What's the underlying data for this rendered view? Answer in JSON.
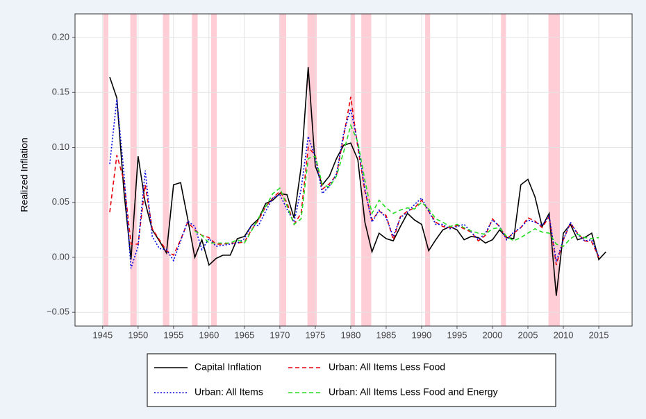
{
  "chart_data": {
    "type": "line",
    "y_label": "Realized Inflation",
    "x": [
      1946,
      1947,
      1948,
      1949,
      1950,
      1951,
      1952,
      1953,
      1954,
      1955,
      1956,
      1957,
      1958,
      1959,
      1960,
      1961,
      1962,
      1963,
      1964,
      1965,
      1966,
      1967,
      1968,
      1969,
      1970,
      1971,
      1972,
      1973,
      1974,
      1975,
      1976,
      1977,
      1978,
      1979,
      1980,
      1981,
      1982,
      1983,
      1984,
      1985,
      1986,
      1987,
      1988,
      1989,
      1990,
      1991,
      1992,
      1993,
      1994,
      1995,
      1996,
      1997,
      1998,
      1999,
      2000,
      2001,
      2002,
      2003,
      2004,
      2005,
      2006,
      2007,
      2008,
      2009,
      2010,
      2011,
      2012,
      2013,
      2014,
      2015,
      2016
    ],
    "series": [
      {
        "name": "Capital Inflation",
        "color": "#000000",
        "dash": "solid",
        "values": [
          0.164,
          0.145,
          0.06,
          -0.002,
          0.092,
          0.05,
          0.025,
          0.015,
          0.004,
          0.066,
          0.068,
          0.035,
          0.0,
          0.016,
          -0.007,
          -0.001,
          0.002,
          0.002,
          0.017,
          0.019,
          0.029,
          0.035,
          0.049,
          0.052,
          0.058,
          0.057,
          0.036,
          0.082,
          0.173,
          0.083,
          0.066,
          0.074,
          0.09,
          0.102,
          0.104,
          0.089,
          0.032,
          0.005,
          0.022,
          0.017,
          0.015,
          0.028,
          0.04,
          0.034,
          0.03,
          0.006,
          0.016,
          0.025,
          0.028,
          0.025,
          0.016,
          0.019,
          0.018,
          0.013,
          0.016,
          0.025,
          0.018,
          0.017,
          0.066,
          0.071,
          0.055,
          0.028,
          0.04,
          -0.035,
          0.022,
          0.03,
          0.016,
          0.018,
          0.022,
          -0.002,
          0.005
        ]
      },
      {
        "name": "Urban: All Items Less Food",
        "color": "#e8000b",
        "dash": "dashed",
        "values": [
          0.041,
          0.093,
          0.07,
          0.012,
          0.012,
          0.066,
          0.026,
          0.016,
          0.006,
          0.002,
          0.016,
          0.032,
          0.025,
          0.02,
          0.018,
          0.012,
          0.012,
          0.013,
          0.013,
          0.014,
          0.025,
          0.034,
          0.046,
          0.054,
          0.06,
          0.05,
          0.03,
          0.04,
          0.1,
          0.093,
          0.062,
          0.067,
          0.075,
          0.11,
          0.146,
          0.1,
          0.06,
          0.034,
          0.042,
          0.038,
          0.016,
          0.037,
          0.042,
          0.045,
          0.052,
          0.042,
          0.032,
          0.028,
          0.027,
          0.029,
          0.026,
          0.023,
          0.015,
          0.02,
          0.035,
          0.028,
          0.017,
          0.022,
          0.027,
          0.036,
          0.033,
          0.027,
          0.037,
          -0.007,
          0.016,
          0.031,
          0.022,
          0.015,
          0.014,
          0.0,
          null
        ]
      },
      {
        "name": "Urban: All Items",
        "color": "#0000e0",
        "dash": "dotted",
        "values": [
          0.085,
          0.144,
          0.077,
          -0.01,
          0.01,
          0.079,
          0.019,
          0.008,
          0.007,
          -0.003,
          0.015,
          0.033,
          0.028,
          0.007,
          0.017,
          0.01,
          0.011,
          0.012,
          0.013,
          0.017,
          0.029,
          0.029,
          0.042,
          0.054,
          0.057,
          0.044,
          0.032,
          0.062,
          0.11,
          0.091,
          0.058,
          0.065,
          0.076,
          0.113,
          0.135,
          0.103,
          0.062,
          0.032,
          0.043,
          0.036,
          0.019,
          0.036,
          0.041,
          0.048,
          0.054,
          0.042,
          0.03,
          0.03,
          0.026,
          0.028,
          0.03,
          0.023,
          0.016,
          0.022,
          0.034,
          0.028,
          0.016,
          0.023,
          0.027,
          0.034,
          0.032,
          0.029,
          0.038,
          -0.004,
          0.016,
          0.032,
          0.021,
          0.015,
          0.016,
          0.001,
          null
        ]
      },
      {
        "name": "Urban: All Items Less Food and Energy",
        "color": "#22dd22",
        "dash": "dashed",
        "values": [
          null,
          null,
          null,
          null,
          null,
          null,
          null,
          null,
          null,
          null,
          null,
          null,
          0.024,
          0.02,
          0.013,
          0.013,
          0.013,
          0.013,
          0.016,
          0.013,
          0.024,
          0.036,
          0.046,
          0.058,
          0.063,
          0.047,
          0.03,
          0.035,
          0.09,
          0.092,
          0.066,
          0.064,
          0.074,
          0.096,
          0.12,
          0.105,
          0.07,
          0.04,
          0.052,
          0.045,
          0.04,
          0.043,
          0.045,
          0.044,
          0.05,
          0.044,
          0.035,
          0.032,
          0.028,
          0.03,
          0.027,
          0.024,
          0.022,
          0.021,
          0.026,
          0.027,
          0.019,
          0.015,
          0.018,
          0.022,
          0.026,
          0.023,
          0.022,
          0.012,
          0.01,
          0.017,
          0.021,
          0.018,
          0.017,
          0.018,
          null
        ]
      }
    ],
    "shaded_regions": [
      [
        1945.1,
        1945.8
      ],
      [
        1948.9,
        1949.8
      ],
      [
        1953.5,
        1954.4
      ],
      [
        1957.6,
        1958.4
      ],
      [
        1960.3,
        1961.1
      ],
      [
        1969.9,
        1970.9
      ],
      [
        1973.9,
        1975.2
      ],
      [
        1980.0,
        1980.6
      ],
      [
        1981.5,
        1982.9
      ],
      [
        1990.5,
        1991.2
      ],
      [
        2001.2,
        2001.9
      ],
      [
        2007.9,
        2009.5
      ]
    ],
    "shade_color": "#ffcdd6",
    "xlim": [
      1941.1,
      2019.7
    ],
    "xticks": [
      1945,
      1950,
      1955,
      1960,
      1965,
      1970,
      1975,
      1980,
      1985,
      1990,
      1995,
      2000,
      2005,
      2010,
      2015
    ],
    "ylim": [
      -0.0625,
      0.2215
    ],
    "yticks": [
      {
        "value": -0.05,
        "label": "−0.05"
      },
      {
        "value": 0,
        "label": "0.00"
      },
      {
        "value": 0.05,
        "label": "0.05"
      },
      {
        "value": 0.1,
        "label": "0.10"
      },
      {
        "value": 0.15,
        "label": "0.15"
      },
      {
        "value": 0.2,
        "label": "0.20"
      }
    ],
    "grid": true,
    "legend_position": "bottom"
  }
}
